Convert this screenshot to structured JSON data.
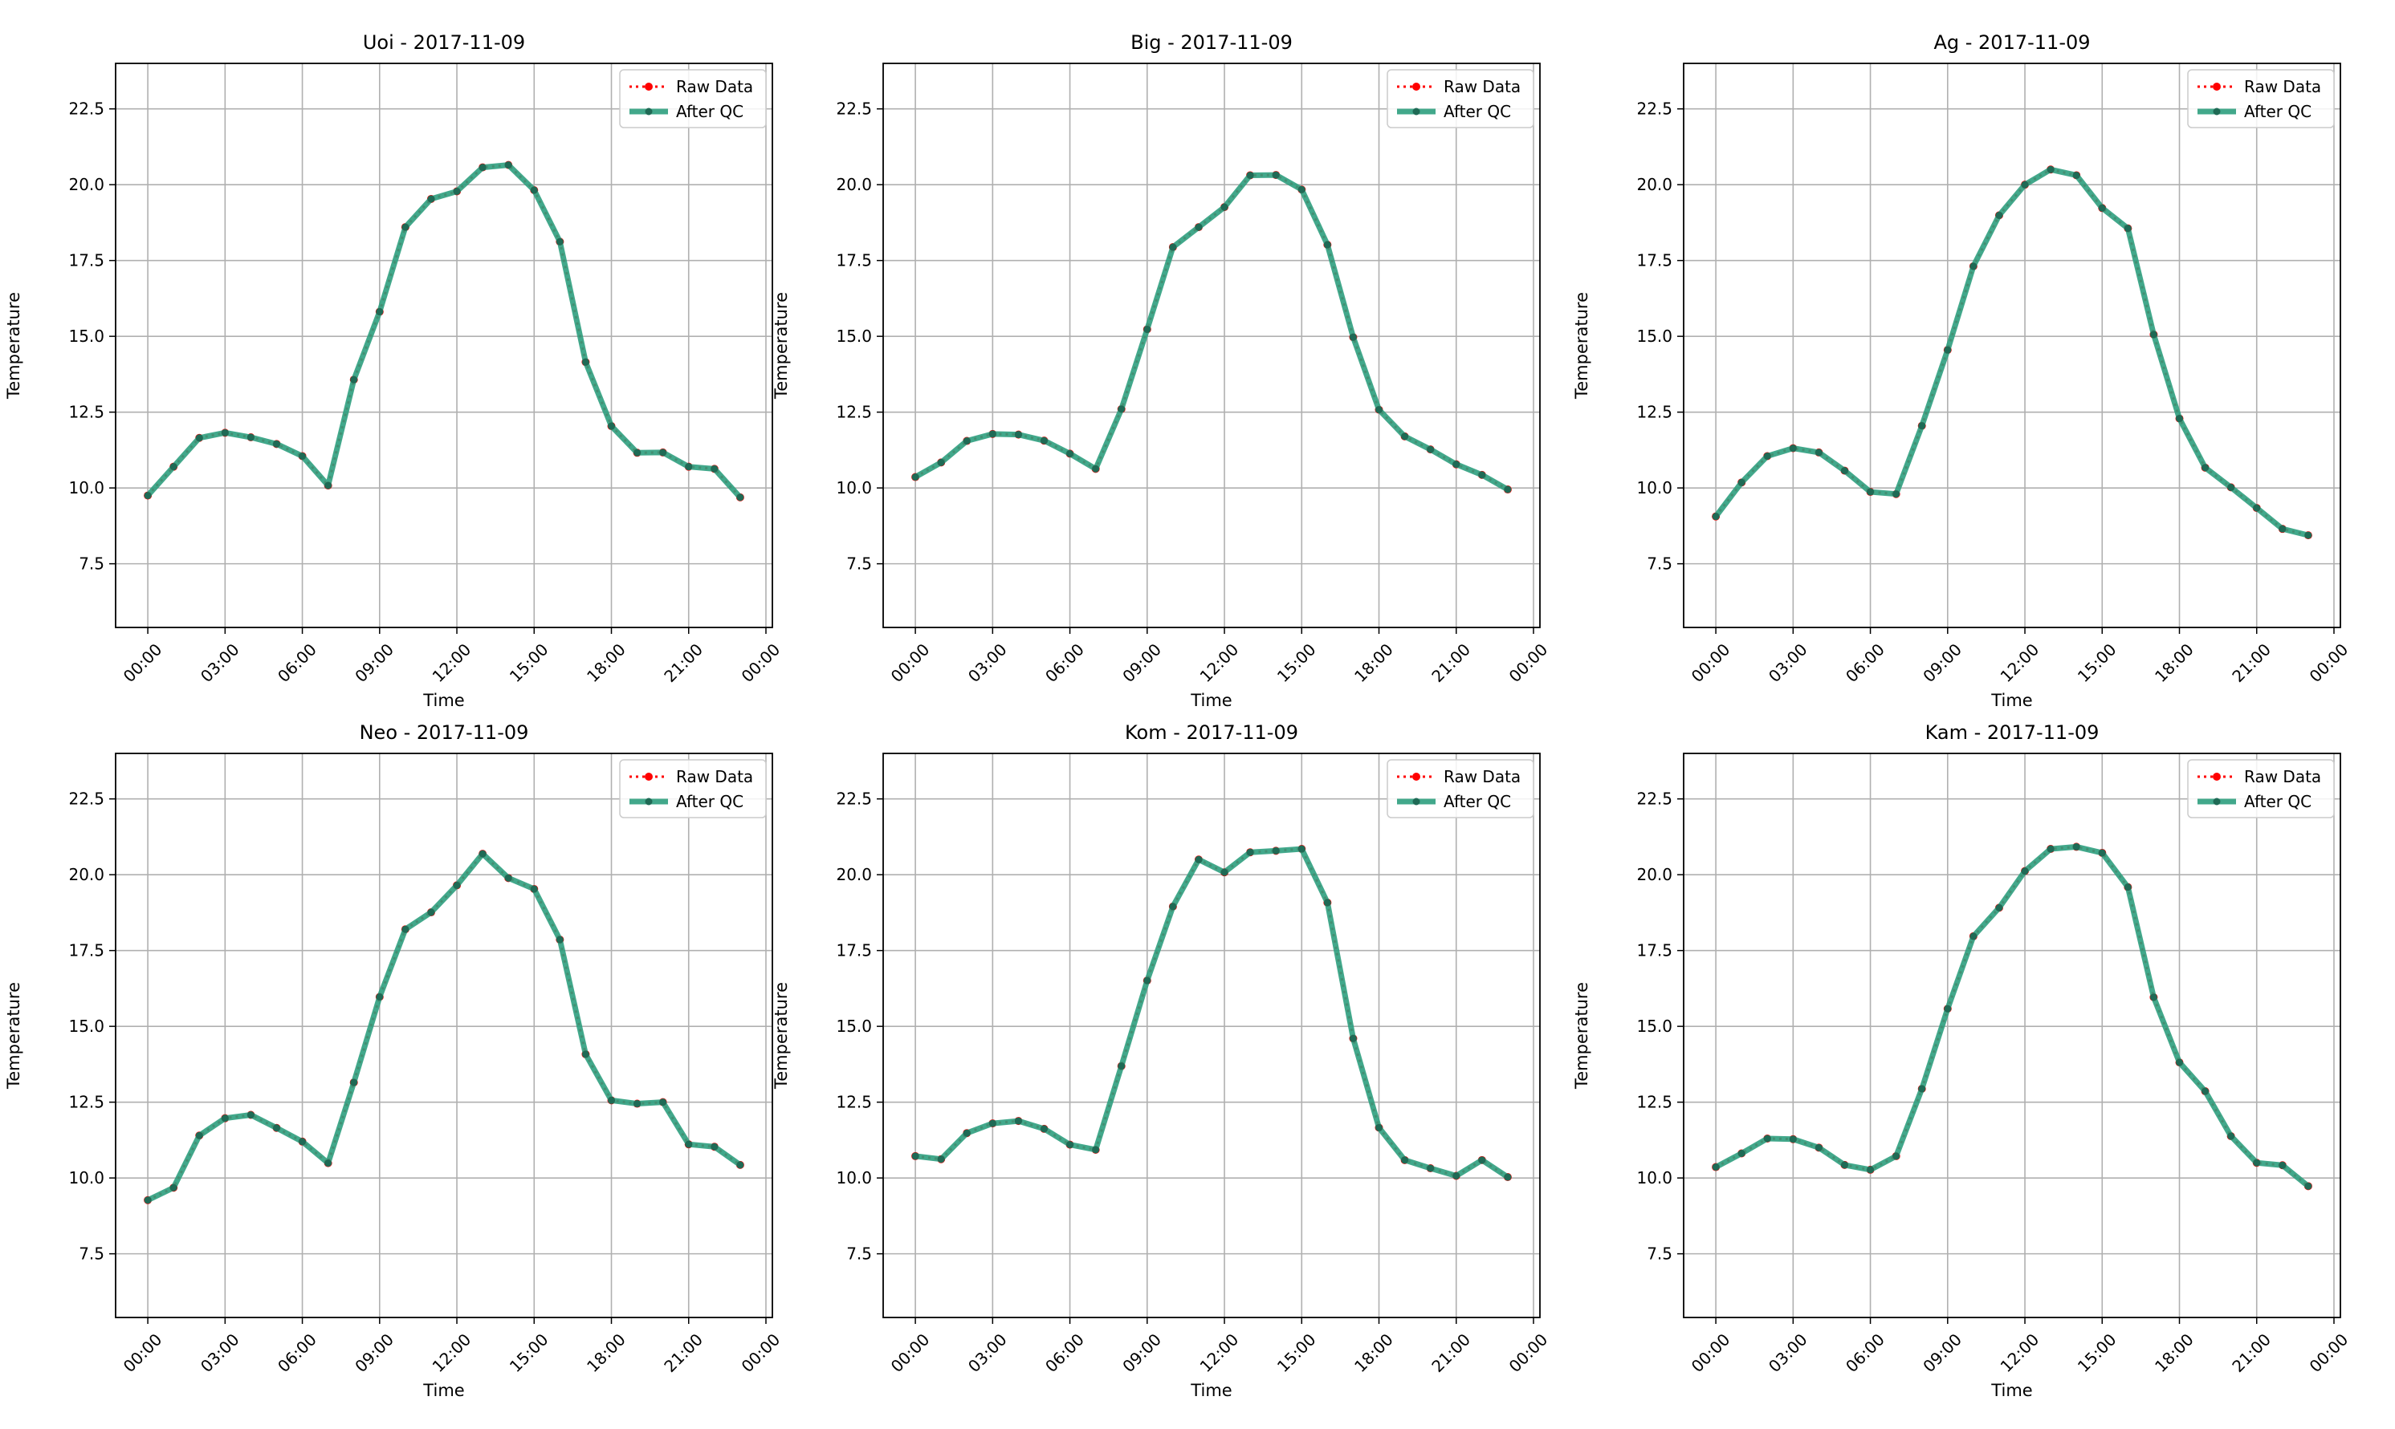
{
  "figure": {
    "y_tick_labels": [
      "7.5",
      "10.0",
      "12.5",
      "15.0",
      "17.5",
      "20.0",
      "22.5"
    ],
    "x_tick_labels": [
      "00:00",
      "03:00",
      "06:00",
      "09:00",
      "12:00",
      "15:00",
      "18:00",
      "21:00",
      "00:00"
    ]
  },
  "colors": {
    "raw": "#ff0000",
    "qc": "#2e9e7e",
    "qc_marker": "#1f6a55",
    "grid": "#b0b0b0"
  },
  "chart_data": [
    {
      "type": "line",
      "title": "Uoi - 2017-11-09",
      "xlabel": "Time",
      "ylabel": "Temperature",
      "xlim": [
        "2017-11-08 22:45",
        "2017-11-10 00:15"
      ],
      "ylim": [
        5.4,
        24.0
      ],
      "grid": true,
      "legend": "top-right",
      "x": [
        "00:00",
        "01:00",
        "02:00",
        "03:00",
        "04:00",
        "05:00",
        "06:00",
        "07:00",
        "08:00",
        "09:00",
        "10:00",
        "11:00",
        "12:00",
        "13:00",
        "14:00",
        "15:00",
        "16:00",
        "17:00",
        "18:00",
        "19:00",
        "20:00",
        "21:00",
        "22:00",
        "23:00"
      ],
      "series": [
        {
          "name": "Raw Data",
          "values": [
            9.75,
            10.7,
            11.65,
            11.82,
            11.67,
            11.45,
            11.05,
            10.08,
            13.57,
            15.81,
            18.6,
            19.53,
            19.78,
            20.57,
            20.65,
            19.82,
            18.12,
            14.15,
            12.04,
            11.16,
            11.17,
            10.7,
            10.63,
            9.69
          ]
        },
        {
          "name": "After QC",
          "values": [
            9.75,
            10.7,
            11.65,
            11.82,
            11.67,
            11.45,
            11.05,
            10.08,
            13.57,
            15.81,
            18.6,
            19.53,
            19.78,
            20.57,
            20.65,
            19.82,
            18.12,
            14.15,
            12.04,
            11.16,
            11.17,
            10.7,
            10.63,
            9.69
          ]
        }
      ]
    },
    {
      "type": "line",
      "title": "Big - 2017-11-09",
      "xlabel": "Time",
      "ylabel": "Temperature",
      "xlim": [
        "2017-11-08 22:45",
        "2017-11-10 00:15"
      ],
      "ylim": [
        5.4,
        24.0
      ],
      "grid": true,
      "legend": "top-right",
      "x": [
        "00:00",
        "01:00",
        "02:00",
        "03:00",
        "04:00",
        "05:00",
        "06:00",
        "07:00",
        "08:00",
        "09:00",
        "10:00",
        "11:00",
        "12:00",
        "13:00",
        "14:00",
        "15:00",
        "16:00",
        "17:00",
        "18:00",
        "19:00",
        "20:00",
        "21:00",
        "22:00",
        "23:00"
      ],
      "series": [
        {
          "name": "Raw Data",
          "values": [
            10.36,
            10.84,
            11.55,
            11.78,
            11.76,
            11.56,
            11.13,
            10.63,
            12.6,
            15.23,
            17.94,
            18.6,
            19.26,
            20.31,
            20.32,
            19.84,
            18.02,
            14.97,
            12.58,
            11.7,
            11.27,
            10.78,
            10.43,
            9.95
          ]
        },
        {
          "name": "After QC",
          "values": [
            10.36,
            10.84,
            11.55,
            11.78,
            11.76,
            11.56,
            11.13,
            10.63,
            12.6,
            15.23,
            17.94,
            18.6,
            19.26,
            20.31,
            20.32,
            19.84,
            18.02,
            14.97,
            12.58,
            11.7,
            11.27,
            10.78,
            10.43,
            9.95
          ]
        }
      ]
    },
    {
      "type": "line",
      "title": "Ag - 2017-11-09",
      "xlabel": "Time",
      "ylabel": "Temperature",
      "xlim": [
        "2017-11-08 22:45",
        "2017-11-10 00:15"
      ],
      "ylim": [
        5.4,
        24.0
      ],
      "grid": true,
      "legend": "top-right",
      "x": [
        "00:00",
        "01:00",
        "02:00",
        "03:00",
        "04:00",
        "05:00",
        "06:00",
        "07:00",
        "08:00",
        "09:00",
        "10:00",
        "11:00",
        "12:00",
        "13:00",
        "14:00",
        "15:00",
        "16:00",
        "17:00",
        "18:00",
        "19:00",
        "20:00",
        "21:00",
        "22:00",
        "23:00"
      ],
      "series": [
        {
          "name": "Raw Data",
          "values": [
            9.06,
            10.18,
            11.05,
            11.31,
            11.17,
            10.57,
            9.87,
            9.8,
            12.05,
            14.55,
            17.31,
            18.99,
            20.0,
            20.5,
            20.31,
            19.23,
            18.56,
            15.06,
            12.29,
            10.67,
            10.02,
            9.34,
            8.65,
            8.44
          ]
        },
        {
          "name": "After QC",
          "values": [
            9.06,
            10.18,
            11.05,
            11.31,
            11.17,
            10.57,
            9.87,
            9.8,
            12.05,
            14.55,
            17.31,
            18.99,
            20.0,
            20.5,
            20.31,
            19.23,
            18.56,
            15.06,
            12.29,
            10.67,
            10.02,
            9.34,
            8.65,
            8.44
          ]
        }
      ]
    },
    {
      "type": "line",
      "title": "Neo - 2017-11-09",
      "xlabel": "Time",
      "ylabel": "Temperature",
      "xlim": [
        "2017-11-08 22:45",
        "2017-11-10 00:15"
      ],
      "ylim": [
        5.4,
        24.0
      ],
      "grid": true,
      "legend": "top-right",
      "x": [
        "00:00",
        "01:00",
        "02:00",
        "03:00",
        "04:00",
        "05:00",
        "06:00",
        "07:00",
        "08:00",
        "09:00",
        "10:00",
        "11:00",
        "12:00",
        "13:00",
        "14:00",
        "15:00",
        "16:00",
        "17:00",
        "18:00",
        "19:00",
        "20:00",
        "21:00",
        "22:00",
        "23:00"
      ],
      "series": [
        {
          "name": "Raw Data",
          "values": [
            9.27,
            9.68,
            11.4,
            11.97,
            12.08,
            11.65,
            11.2,
            10.49,
            13.15,
            15.97,
            18.2,
            18.76,
            19.65,
            20.69,
            19.89,
            19.53,
            17.86,
            14.08,
            12.56,
            12.45,
            12.5,
            11.11,
            11.03,
            10.43
          ]
        },
        {
          "name": "After QC",
          "values": [
            9.27,
            9.68,
            11.4,
            11.97,
            12.08,
            11.65,
            11.2,
            10.49,
            13.15,
            15.97,
            18.2,
            18.76,
            19.65,
            20.69,
            19.89,
            19.53,
            17.86,
            14.08,
            12.56,
            12.45,
            12.5,
            11.11,
            11.03,
            10.43
          ]
        }
      ]
    },
    {
      "type": "line",
      "title": "Kom - 2017-11-09",
      "xlabel": "Time",
      "ylabel": "Temperature",
      "xlim": [
        "2017-11-08 22:45",
        "2017-11-10 00:15"
      ],
      "ylim": [
        5.4,
        24.0
      ],
      "grid": true,
      "legend": "top-right",
      "x": [
        "00:00",
        "01:00",
        "02:00",
        "03:00",
        "04:00",
        "05:00",
        "06:00",
        "07:00",
        "08:00",
        "09:00",
        "10:00",
        "11:00",
        "12:00",
        "13:00",
        "14:00",
        "15:00",
        "16:00",
        "17:00",
        "18:00",
        "19:00",
        "20:00",
        "21:00",
        "22:00",
        "23:00"
      ],
      "series": [
        {
          "name": "Raw Data",
          "values": [
            10.72,
            10.62,
            11.48,
            11.8,
            11.88,
            11.62,
            11.1,
            10.93,
            13.69,
            16.51,
            18.95,
            20.5,
            20.08,
            20.74,
            20.79,
            20.85,
            19.08,
            14.6,
            11.66,
            10.59,
            10.32,
            10.07,
            10.59,
            10.03
          ]
        },
        {
          "name": "After QC",
          "values": [
            10.72,
            10.62,
            11.48,
            11.8,
            11.88,
            11.62,
            11.1,
            10.93,
            13.69,
            16.51,
            18.95,
            20.5,
            20.08,
            20.74,
            20.79,
            20.85,
            19.08,
            14.6,
            11.66,
            10.59,
            10.32,
            10.07,
            10.59,
            10.03
          ]
        }
      ]
    },
    {
      "type": "line",
      "title": "Kam - 2017-11-09",
      "xlabel": "Time",
      "ylabel": "Temperature",
      "xlim": [
        "2017-11-08 22:45",
        "2017-11-10 00:15"
      ],
      "ylim": [
        5.4,
        24.0
      ],
      "grid": true,
      "legend": "top-right",
      "x": [
        "00:00",
        "01:00",
        "02:00",
        "03:00",
        "04:00",
        "05:00",
        "06:00",
        "07:00",
        "08:00",
        "09:00",
        "10:00",
        "11:00",
        "12:00",
        "13:00",
        "14:00",
        "15:00",
        "16:00",
        "17:00",
        "18:00",
        "19:00",
        "20:00",
        "21:00",
        "22:00",
        "23:00"
      ],
      "series": [
        {
          "name": "Raw Data",
          "values": [
            10.36,
            10.81,
            11.3,
            11.28,
            11.0,
            10.43,
            10.27,
            10.72,
            12.94,
            15.58,
            17.97,
            18.91,
            20.12,
            20.85,
            20.92,
            20.72,
            19.59,
            15.96,
            13.81,
            12.86,
            11.38,
            10.5,
            10.42,
            9.73
          ]
        },
        {
          "name": "After QC",
          "values": [
            10.36,
            10.81,
            11.3,
            11.28,
            11.0,
            10.43,
            10.27,
            10.72,
            12.94,
            15.58,
            17.97,
            18.91,
            20.12,
            20.85,
            20.92,
            20.72,
            19.59,
            15.96,
            13.81,
            12.86,
            11.38,
            10.5,
            10.42,
            9.73
          ]
        }
      ]
    }
  ]
}
